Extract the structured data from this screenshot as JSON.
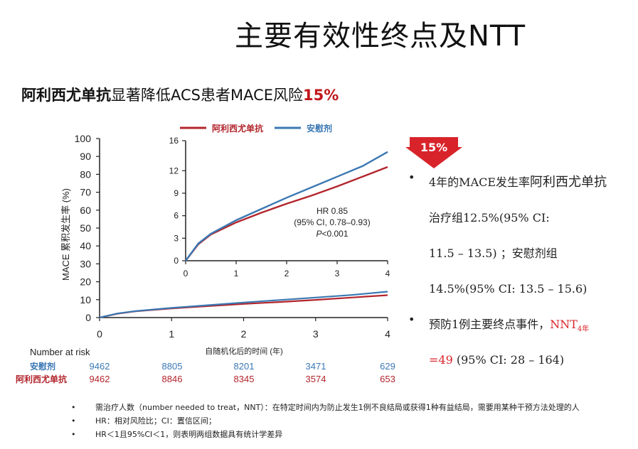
{
  "page": {
    "title": "主要有效性终点及NTT",
    "subtitle_bold": "阿利西尤单抗",
    "subtitle_rest": "显著降低ACS患者MACE风险",
    "subtitle_pct": "15%"
  },
  "badge": {
    "label": "15%",
    "color": "#d8232a"
  },
  "bullets": {
    "b1_line1_pre": "4年的MACE发生率",
    "b1_line1_em": "阿利西尤单抗",
    "b1_line2": "治疗组12.5%(95% CI:",
    "b1_line3": "11.5 – 13.5) ；安慰剂组",
    "b1_line4": "14.5%(95% CI: 13.5 – 15.6)",
    "b2_line1_pre": "预防1例主要终点事件，",
    "b2_nnt": "NNT",
    "b2_sub": "4年",
    "b2_eq": "=49",
    "b2_rest": " (95% CI: 28 – 164)"
  },
  "notes": [
    "需治疗人数（number needed to treat，NNT）：在特定时间内为防止发生1例不良结局或获得1种有益结局，需要用某种干预方法处理的人",
    "HR：相对风险比；CI：置信区间；",
    "HR＜1且95%CI＜1，则表明两组数据具有统计学差异"
  ],
  "colors": {
    "alirocumab": "#b2252c",
    "placebo": "#3b78b3",
    "accent": "#d8232a"
  },
  "chart_data": [
    {
      "type": "line",
      "title": "",
      "xlabel": "自随机化后的时间 (年)",
      "ylabel": "MACE 累积发生率 (%)",
      "xlim": [
        0,
        4
      ],
      "ylim": [
        0,
        100
      ],
      "x_ticks": [
        "0",
        "1",
        "2",
        "3",
        "4"
      ],
      "y_ticks": [
        "0",
        "10",
        "20",
        "30",
        "40",
        "50",
        "60",
        "70",
        "80",
        "90",
        "100"
      ],
      "legend": [
        "阿利西尤单抗",
        "安慰剂"
      ],
      "series": [
        {
          "name": "阿利西尤单抗",
          "x": [
            0,
            0.25,
            0.5,
            1,
            1.5,
            2,
            2.5,
            3,
            3.5,
            4
          ],
          "values": [
            0,
            2.2,
            3.5,
            5.1,
            6.4,
            7.6,
            8.7,
            9.9,
            11.2,
            12.5
          ]
        },
        {
          "name": "安慰剂",
          "x": [
            0,
            0.25,
            0.5,
            1,
            1.5,
            2,
            2.5,
            3,
            3.5,
            4
          ],
          "values": [
            0,
            2.3,
            3.6,
            5.4,
            6.9,
            8.4,
            9.8,
            11.2,
            12.6,
            14.5
          ]
        }
      ],
      "risk_table": {
        "header": "Number at risk",
        "rows": [
          {
            "name": "安慰剂",
            "values": [
              "9462",
              "8805",
              "8201",
              "3471",
              "629"
            ]
          },
          {
            "name": "阿利西尤单抗",
            "values": [
              "9462",
              "8846",
              "8345",
              "3574",
              "653"
            ]
          }
        ]
      }
    },
    {
      "type": "line",
      "title": "inset",
      "xlim": [
        0,
        4
      ],
      "ylim": [
        0,
        16
      ],
      "x_ticks": [
        "0",
        "1",
        "2",
        "3",
        "4"
      ],
      "y_ticks": [
        "0",
        "3",
        "6",
        "9",
        "12",
        "16"
      ],
      "annotation": {
        "line1": "HR 0.85",
        "line2": "(95% CI, 0.78–0.93)",
        "line3_p": "P",
        "line3_rest": "<0.001"
      },
      "series": [
        {
          "name": "阿利西尤单抗",
          "x": [
            0,
            0.25,
            0.5,
            1,
            1.5,
            2,
            2.5,
            3,
            3.5,
            4
          ],
          "values": [
            0,
            2.2,
            3.5,
            5.1,
            6.4,
            7.6,
            8.7,
            9.9,
            11.2,
            12.5
          ]
        },
        {
          "name": "安慰剂",
          "x": [
            0,
            0.25,
            0.5,
            1,
            1.5,
            2,
            2.5,
            3,
            3.5,
            4
          ],
          "values": [
            0,
            2.3,
            3.6,
            5.4,
            6.9,
            8.4,
            9.8,
            11.2,
            12.6,
            14.5
          ]
        }
      ]
    }
  ]
}
